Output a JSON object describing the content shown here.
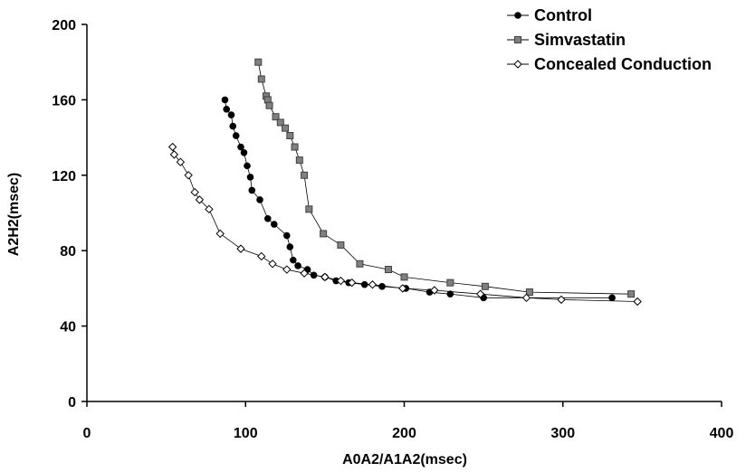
{
  "chart_data": {
    "type": "scatter",
    "xlabel": "A0A2/A1A2(msec)",
    "ylabel": "A2H2(msec)",
    "xlim": [
      0,
      400
    ],
    "ylim": [
      0,
      200
    ],
    "xticks": [
      0,
      100,
      200,
      300,
      400
    ],
    "yticks": [
      0,
      40,
      80,
      120,
      160,
      200
    ],
    "grid": false,
    "legend_position": "top-right",
    "series": [
      {
        "name": "Control",
        "marker": "filled-circle",
        "color": "#000000",
        "x": [
          87,
          88,
          91,
          92,
          94,
          97,
          99,
          101,
          103,
          104,
          109,
          114,
          118,
          126,
          128,
          130,
          133,
          139,
          143,
          150,
          157,
          165,
          175,
          186,
          201,
          216,
          229,
          250,
          331
        ],
        "y": [
          160,
          155,
          152,
          146,
          141,
          135,
          132,
          125,
          119,
          112,
          107,
          97,
          94,
          88,
          82,
          75,
          72,
          70,
          67,
          66,
          64,
          63,
          62,
          61,
          60,
          58,
          57,
          55,
          55
        ]
      },
      {
        "name": "Simvastatin",
        "marker": "filled-square",
        "color": "#808080",
        "x": [
          108,
          110,
          113,
          114,
          115,
          119,
          122,
          125,
          128,
          131,
          134,
          137,
          140,
          149,
          160,
          172,
          190,
          200,
          229,
          251,
          279,
          343
        ],
        "y": [
          180,
          171,
          162,
          160,
          157,
          151,
          148,
          145,
          141,
          135,
          128,
          120,
          102,
          89,
          83,
          73,
          70,
          66,
          63,
          61,
          58,
          57
        ]
      },
      {
        "name": "Concealed Conduction",
        "marker": "open-diamond",
        "color": "#000000",
        "x": [
          54,
          55,
          59,
          64,
          68,
          71,
          77,
          84,
          97,
          110,
          117,
          126,
          137,
          150,
          160,
          167,
          180,
          199,
          219,
          248,
          277,
          299,
          347
        ],
        "y": [
          135,
          131,
          127,
          120,
          111,
          107,
          102,
          89,
          81,
          77,
          73,
          70,
          68,
          66,
          64,
          63,
          62,
          60,
          59,
          57,
          55,
          54,
          53
        ]
      }
    ]
  }
}
